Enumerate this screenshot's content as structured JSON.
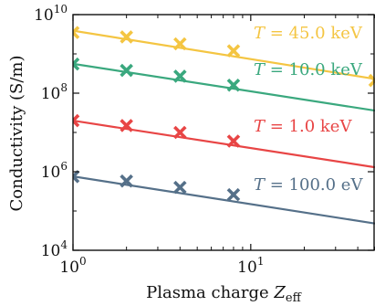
{
  "chart_data": {
    "type": "line",
    "xlabel": "Plasma charge Z_eff",
    "ylabel": "Conductivity (S/m)",
    "xscale": "log",
    "yscale": "log",
    "xlim": [
      1,
      50
    ],
    "ylim": [
      10000,
      10000000000
    ],
    "grid": false,
    "legend": "inline labels at right",
    "x_ticks": [
      {
        "value": 1,
        "base": "10",
        "exp": "0"
      },
      {
        "value": 10,
        "base": "10",
        "exp": "1"
      }
    ],
    "y_ticks": [
      {
        "value": 10000,
        "base": "10",
        "exp": "4"
      },
      {
        "value": 1000000,
        "base": "10",
        "exp": "6"
      },
      {
        "value": 100000000,
        "base": "10",
        "exp": "8"
      },
      {
        "value": 10000000000,
        "base": "10",
        "exp": "10"
      }
    ],
    "series": [
      {
        "name": "T = 45.0 keV",
        "label_var": "T",
        "label_value": "45.0",
        "label_unit": "keV",
        "color": "#f4c542",
        "x": [
          1,
          2,
          4,
          8,
          50
        ],
        "y": [
          3500000000,
          2700000000,
          1800000000,
          1200000000,
          210000000
        ],
        "markers_x": [
          1,
          2,
          4,
          8,
          50
        ],
        "line": {
          "x": [
            1,
            50
          ],
          "y": [
            3900000000,
            230000000
          ]
        }
      },
      {
        "name": "T = 10.0 keV",
        "label_var": "T",
        "label_value": "10.0",
        "label_unit": "keV",
        "color": "#3aa87e",
        "x": [
          1,
          2,
          4,
          8,
          50
        ],
        "y": [
          550000000,
          380000000,
          270000000,
          160000000,
          38000000
        ],
        "markers_x": [
          1,
          2,
          4,
          8
        ],
        "line": {
          "x": [
            1,
            50
          ],
          "y": [
            560000000,
            36000000
          ]
        }
      },
      {
        "name": "T = 1.0 keV",
        "label_var": "T",
        "label_value": "1.0",
        "label_unit": "keV",
        "color": "#e84545",
        "x": [
          1,
          2,
          4,
          8,
          50
        ],
        "y": [
          20000000,
          15000000,
          10000000,
          6000000,
          1300000
        ],
        "markers_x": [
          1,
          2,
          4,
          8
        ],
        "line": {
          "x": [
            1,
            50
          ],
          "y": [
            20000000,
            1300000
          ]
        }
      },
      {
        "name": "T = 100.0 eV",
        "label_var": "T",
        "label_value": "100.0",
        "label_unit": "eV",
        "color": "#557089",
        "x": [
          1,
          2,
          4,
          8,
          50
        ],
        "y": [
          750000,
          580000,
          400000,
          260000,
          48000
        ],
        "markers_x": [
          1,
          2,
          4,
          8
        ],
        "line": {
          "x": [
            1,
            50
          ],
          "y": [
            760000,
            48000
          ]
        }
      }
    ]
  }
}
